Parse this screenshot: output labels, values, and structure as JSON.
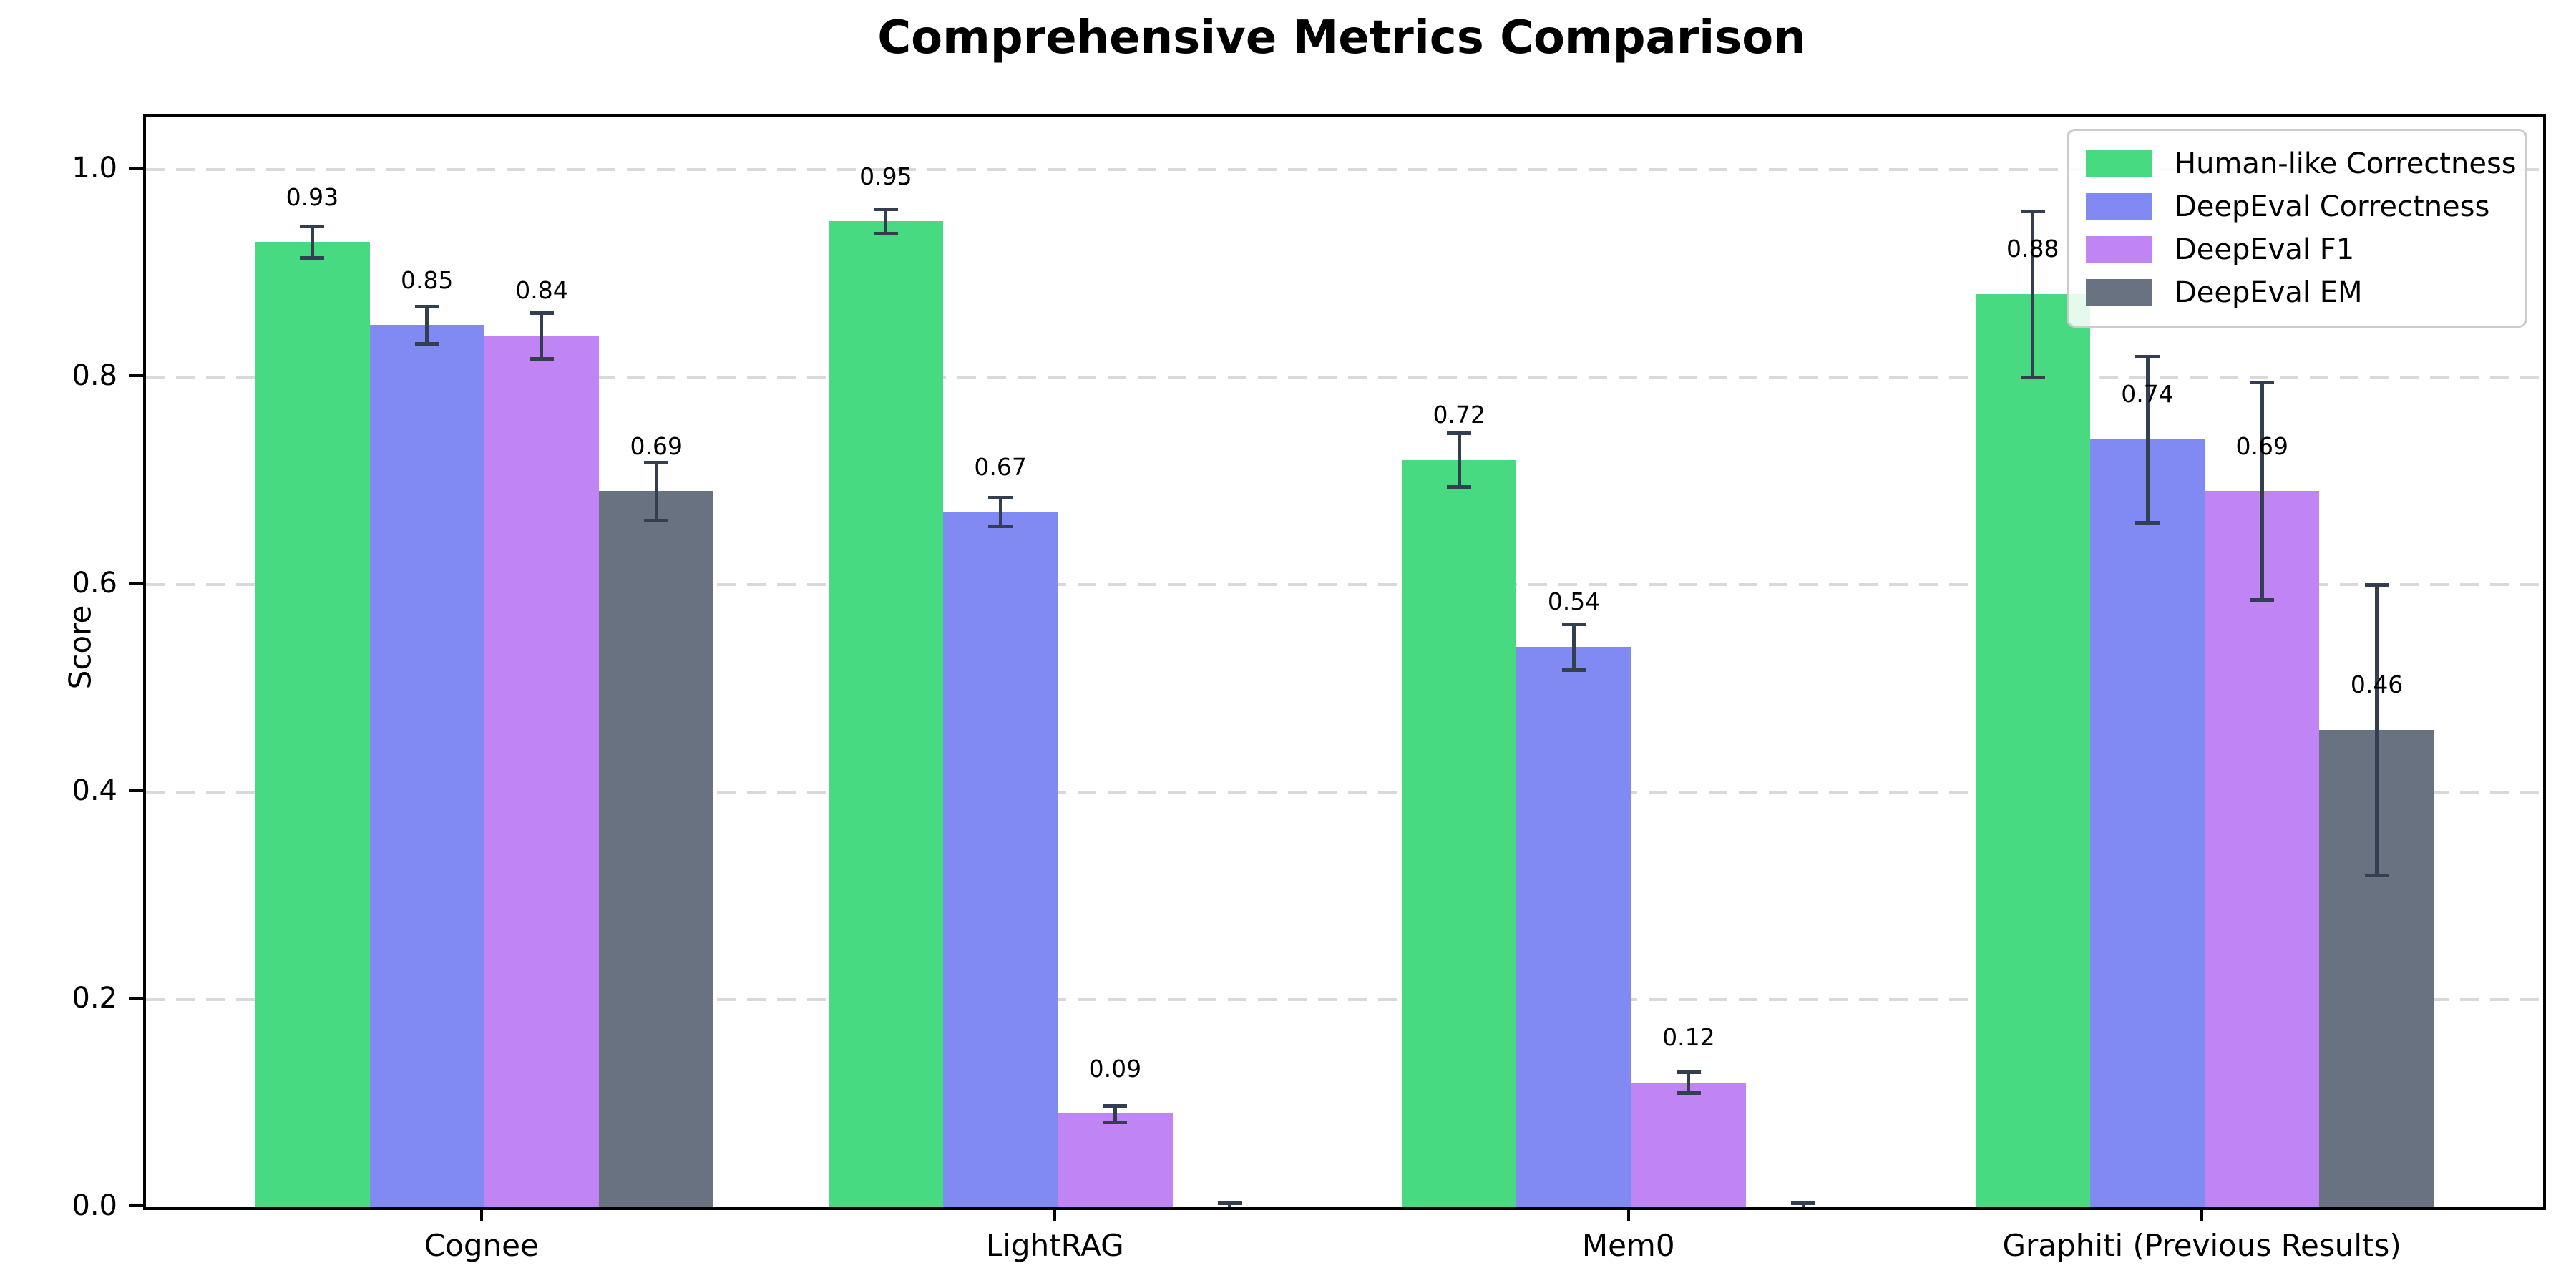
{
  "chart_data": {
    "type": "bar",
    "title": "Comprehensive Metrics Comparison",
    "ylabel": "Score",
    "xlabel": "",
    "categories": [
      "Cognee",
      "LightRAG",
      "Mem0",
      "Graphiti (Previous Results)"
    ],
    "series": [
      {
        "name": "Human-like Correctness",
        "color": "#47da80",
        "values": [
          0.93,
          0.95,
          0.72,
          0.88
        ],
        "errors": [
          0.015,
          0.012,
          0.026,
          0.08
        ]
      },
      {
        "name": "DeepEval Correctness",
        "color": "#8189f2",
        "values": [
          0.85,
          0.67,
          0.54,
          0.74
        ],
        "errors": [
          0.018,
          0.014,
          0.022,
          0.08
        ]
      },
      {
        "name": "DeepEval F1",
        "color": "#c084f5",
        "values": [
          0.84,
          0.09,
          0.12,
          0.69
        ],
        "errors": [
          0.022,
          0.008,
          0.01,
          0.105
        ]
      },
      {
        "name": "DeepEval EM",
        "color": "#697280",
        "values": [
          0.69,
          0.0,
          0.0,
          0.46
        ],
        "errors": [
          0.028,
          0.004,
          0.004,
          0.14
        ]
      }
    ],
    "yticks": [
      0.0,
      0.2,
      0.4,
      0.6,
      0.8,
      1.0
    ],
    "ylim": [
      0,
      1.05
    ],
    "grid": "horizontal dashed",
    "legend_position": "upper right",
    "bar_value_label_format": "two decimals, hidden for zero-height bars",
    "error_bar_color": "#333f50"
  }
}
